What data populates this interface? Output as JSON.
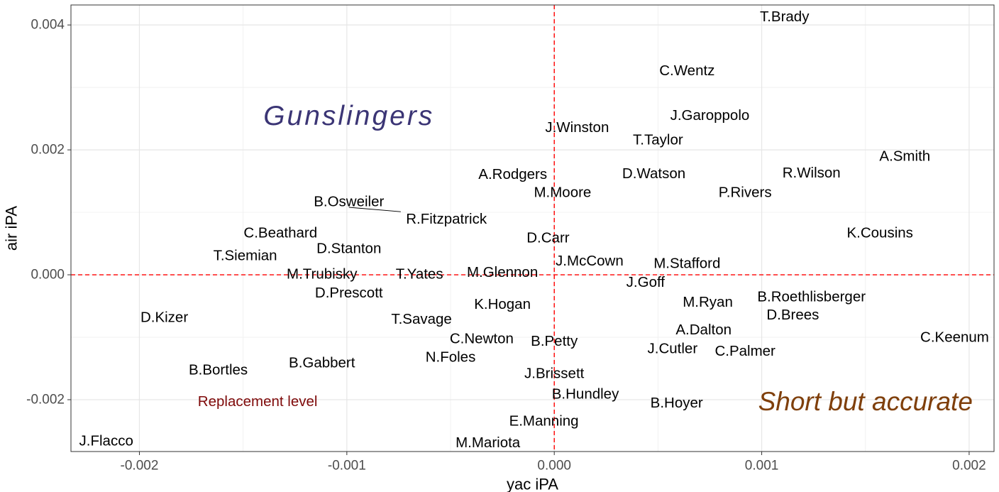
{
  "chart_data": {
    "type": "scatter",
    "xlabel": "yac iPA",
    "ylabel": "air iPA",
    "xlim": [
      -0.00233,
      0.00212
    ],
    "ylim": [
      -0.00283,
      0.00432
    ],
    "x_ticks": [
      -0.002,
      -0.001,
      0.0,
      0.001,
      0.002
    ],
    "x_tick_labels": [
      "-0.002",
      "-0.001",
      "0.000",
      "0.001",
      "0.002"
    ],
    "y_ticks": [
      -0.002,
      0.0,
      0.002,
      0.004
    ],
    "y_tick_labels": [
      "-0.002",
      "0.000",
      "0.002",
      "0.004"
    ],
    "grid": true,
    "reference_lines": {
      "x": 0.0,
      "y": 0.0,
      "style": "dashed",
      "color": "#ff0000"
    },
    "points": [
      {
        "label": "T.Brady",
        "x": 0.00111,
        "y": 0.00413
      },
      {
        "label": "C.Wentz",
        "x": 0.00064,
        "y": 0.00327
      },
      {
        "label": "J.Garoppolo",
        "x": 0.00075,
        "y": 0.00255
      },
      {
        "label": "J.Winston",
        "x": 0.00011,
        "y": 0.00236
      },
      {
        "label": "T.Taylor",
        "x": 0.0005,
        "y": 0.00216
      },
      {
        "label": "A.Smith",
        "x": 0.00169,
        "y": 0.0019
      },
      {
        "label": "A.Rodgers",
        "x": -0.0002,
        "y": 0.00161
      },
      {
        "label": "D.Watson",
        "x": 0.00048,
        "y": 0.00162
      },
      {
        "label": "R.Wilson",
        "x": 0.00124,
        "y": 0.00163
      },
      {
        "label": "M.Moore",
        "x": 4e-05,
        "y": 0.00132
      },
      {
        "label": "P.Rivers",
        "x": 0.00092,
        "y": 0.00132
      },
      {
        "label": "B.Osweiler",
        "x": -0.00099,
        "y": 0.00117
      },
      {
        "label": "R.Fitzpatrick",
        "x": -0.00052,
        "y": 0.00089
      },
      {
        "label": "K.Cousins",
        "x": 0.00157,
        "y": 0.00067
      },
      {
        "label": "C.Beathard",
        "x": -0.00132,
        "y": 0.00067
      },
      {
        "label": "D.Carr",
        "x": -3e-05,
        "y": 0.00059
      },
      {
        "label": "D.Stanton",
        "x": -0.00099,
        "y": 0.00042
      },
      {
        "label": "T.Siemian",
        "x": -0.00149,
        "y": 0.00031
      },
      {
        "label": "J.McCown",
        "x": 0.00017,
        "y": 0.00022
      },
      {
        "label": "M.Stafford",
        "x": 0.00064,
        "y": 0.00018
      },
      {
        "label": "M.Trubisky",
        "x": -0.00112,
        "y": 1e-05
      },
      {
        "label": "T.Yates",
        "x": -0.00065,
        "y": 1e-05
      },
      {
        "label": "M.Glennon",
        "x": -0.00025,
        "y": 4e-05
      },
      {
        "label": "J.Goff",
        "x": 0.00044,
        "y": -0.00012
      },
      {
        "label": "D.Prescott",
        "x": -0.00099,
        "y": -0.00029
      },
      {
        "label": "B.Roethlisberger",
        "x": 0.00124,
        "y": -0.00035
      },
      {
        "label": "M.Ryan",
        "x": 0.00074,
        "y": -0.00044
      },
      {
        "label": "K.Hogan",
        "x": -0.00025,
        "y": -0.00047
      },
      {
        "label": "D.Brees",
        "x": 0.00115,
        "y": -0.00064
      },
      {
        "label": "D.Kizer",
        "x": -0.00188,
        "y": -0.00068
      },
      {
        "label": "T.Savage",
        "x": -0.00064,
        "y": -0.00071
      },
      {
        "label": "A.Dalton",
        "x": 0.00072,
        "y": -0.00088
      },
      {
        "label": "C.Newton",
        "x": -0.00035,
        "y": -0.00102
      },
      {
        "label": "C.Keenum",
        "x": 0.00193,
        "y": -0.001
      },
      {
        "label": "B.Petty",
        "x": 0.0,
        "y": -0.00106
      },
      {
        "label": "J.Cutler",
        "x": 0.00057,
        "y": -0.00118
      },
      {
        "label": "C.Palmer",
        "x": 0.00092,
        "y": -0.00122
      },
      {
        "label": "N.Foles",
        "x": -0.0005,
        "y": -0.00132
      },
      {
        "label": "B.Gabbert",
        "x": -0.00112,
        "y": -0.00141
      },
      {
        "label": "B.Bortles",
        "x": -0.00162,
        "y": -0.00152
      },
      {
        "label": "J.Brissett",
        "x": 0.0,
        "y": -0.00158
      },
      {
        "label": "B.Hundley",
        "x": 0.00015,
        "y": -0.00191
      },
      {
        "label": "B.Hoyer",
        "x": 0.00059,
        "y": -0.00205
      },
      {
        "label": "E.Manning",
        "x": -5e-05,
        "y": -0.00234
      },
      {
        "label": "J.Flacco",
        "x": -0.00216,
        "y": -0.00266
      },
      {
        "label": "M.Mariota",
        "x": -0.00032,
        "y": -0.00269
      }
    ],
    "annotations": [
      {
        "text": "Gunslingers",
        "x": -0.00099,
        "y": 0.00254,
        "color": "#3b3575",
        "kind": "gun"
      },
      {
        "text": "Short but accurate",
        "x": 0.0015,
        "y": -0.00203,
        "color": "#7f3f0b",
        "kind": "short"
      },
      {
        "text": "Replacement level",
        "x": -0.00143,
        "y": -0.00203,
        "color": "#7f0a0a",
        "kind": "repl"
      }
    ],
    "leader_segments": [
      {
        "from": [
          -0.00099,
          0.00108
        ],
        "to": [
          -0.00074,
          0.00101
        ]
      }
    ]
  }
}
